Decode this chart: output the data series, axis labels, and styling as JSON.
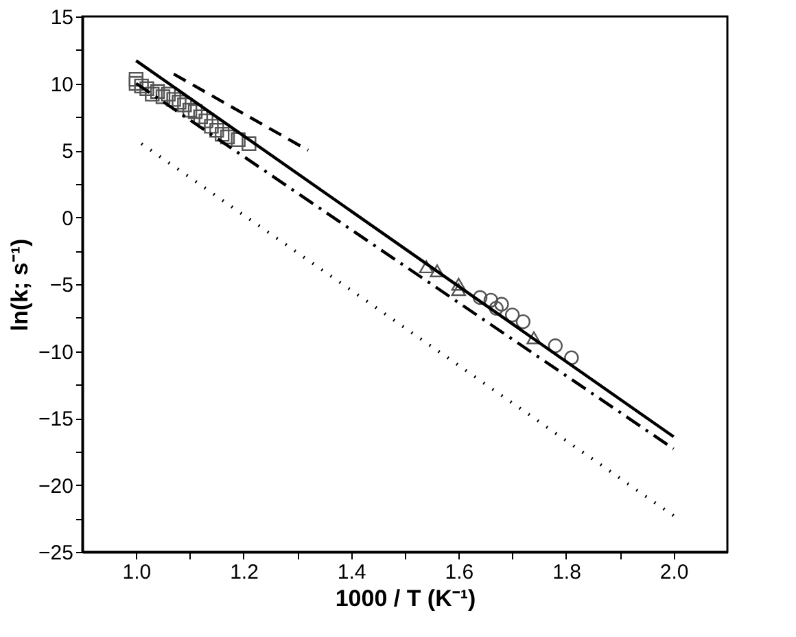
{
  "chart_data": {
    "type": "scatter",
    "xlabel": "1000 / T (K⁻¹)",
    "ylabel": "ln(k; s⁻¹)",
    "xlim": [
      0.9,
      2.1
    ],
    "ylim": [
      -25,
      15
    ],
    "xticks": [
      {
        "value": 1.0,
        "label": "1.0"
      },
      {
        "value": 1.1,
        "label": null
      },
      1.2,
      {
        "value": 1.3,
        "label": null
      },
      1.4,
      {
        "value": 1.5,
        "label": null
      },
      1.6,
      {
        "value": 1.7,
        "label": null
      },
      1.8,
      {
        "value": 1.9,
        "label": null
      },
      {
        "value": 2.0,
        "label": "2.0"
      }
    ],
    "yticks": [
      -25,
      {
        "value": -22.5,
        "label": null
      },
      -20,
      {
        "value": -17.5,
        "label": null
      },
      -15,
      {
        "value": -12.5,
        "label": null
      },
      -10,
      {
        "value": -7.5,
        "label": null
      },
      -5,
      {
        "value": -2.5,
        "label": null
      },
      0,
      {
        "value": 2.5,
        "label": null
      },
      5,
      {
        "value": 7.5,
        "label": null
      },
      10,
      {
        "value": 12.5,
        "label": null
      },
      15
    ],
    "grid": false,
    "series": [
      {
        "marker": "square",
        "color": "#555555",
        "x": [
          1.0,
          1.0,
          1.01,
          1.02,
          1.03,
          1.04,
          1.05,
          1.06,
          1.07,
          1.08,
          1.09,
          1.1,
          1.11,
          1.12,
          1.13,
          1.14,
          1.15,
          1.16,
          1.17,
          1.19,
          1.21
        ],
        "values": [
          10.3,
          10.0,
          9.8,
          9.6,
          9.2,
          9.4,
          9.0,
          9.2,
          8.8,
          8.6,
          8.4,
          8.0,
          7.9,
          7.5,
          7.2,
          6.8,
          6.5,
          6.2,
          6.0,
          5.8,
          5.5
        ]
      },
      {
        "marker": "triangle",
        "color": "#555555",
        "x": [
          1.54,
          1.56,
          1.6,
          1.6,
          1.74
        ],
        "values": [
          -3.7,
          -4.0,
          -5.0,
          -5.4,
          -9.0
        ]
      },
      {
        "marker": "circle",
        "color": "#555555",
        "x": [
          1.64,
          1.66,
          1.67,
          1.68,
          1.7,
          1.72,
          1.78,
          1.81
        ],
        "values": [
          -6.0,
          -6.2,
          -6.8,
          -6.5,
          -7.3,
          -7.8,
          -9.6,
          -10.5
        ]
      },
      {
        "type": "line",
        "line_style": "solid",
        "color": "#000000",
        "x": [
          1.0,
          2.0
        ],
        "values": [
          11.7,
          -16.4
        ]
      },
      {
        "type": "line",
        "line_style": "dashed",
        "color": "#000000",
        "x": [
          1.07,
          1.32
        ],
        "values": [
          10.7,
          5.0
        ]
      },
      {
        "type": "line",
        "line_style": "dashdot",
        "color": "#000000",
        "x": [
          1.0,
          2.0
        ],
        "values": [
          10.0,
          -17.3
        ]
      },
      {
        "type": "line",
        "line_style": "dotted",
        "color": "#000000",
        "x": [
          1.01,
          2.0
        ],
        "values": [
          5.5,
          -22.3
        ]
      }
    ]
  }
}
